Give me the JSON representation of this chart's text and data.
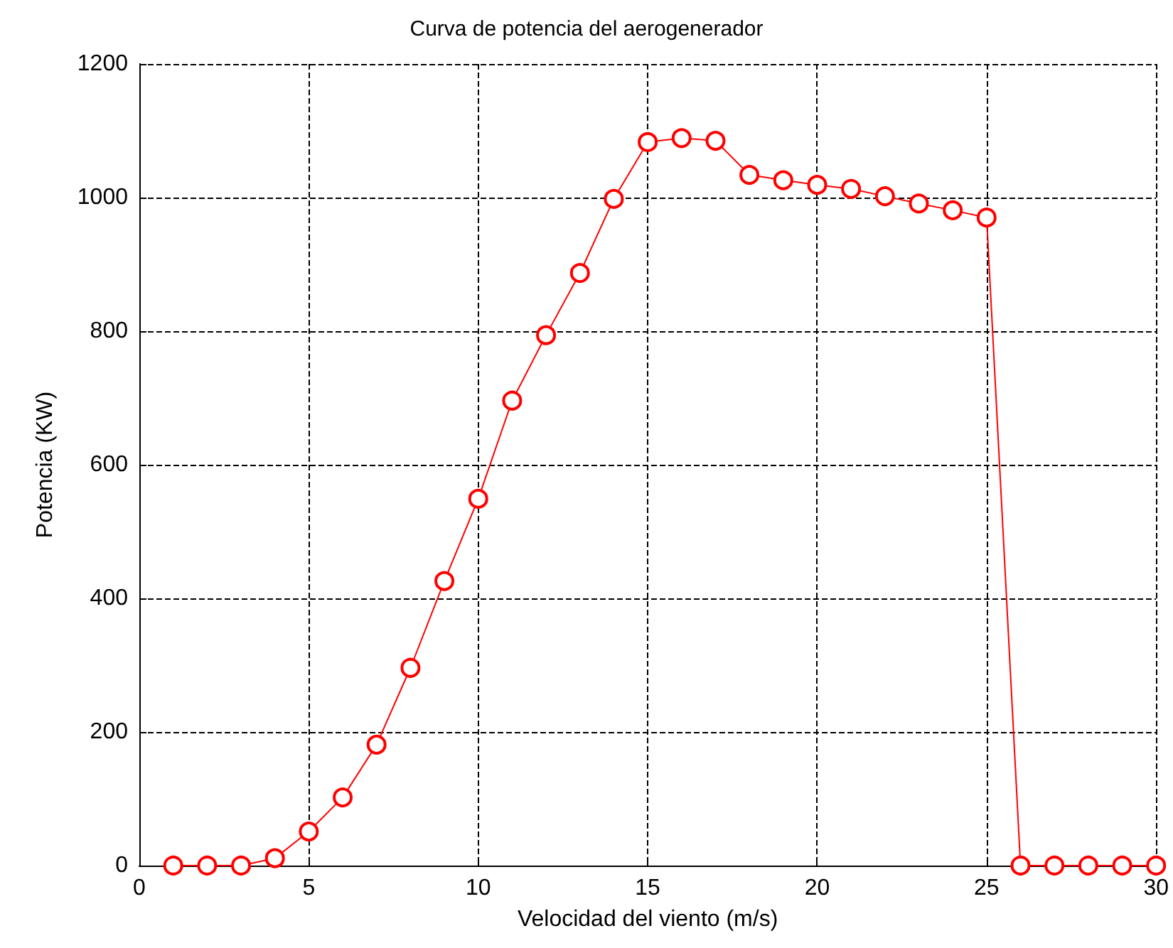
{
  "chart_data": {
    "type": "line",
    "title": "Curva de potencia del aerogenerador",
    "xlabel": "Velocidad del viento (m/s)",
    "ylabel": "Potencia (KW)",
    "x": [
      1,
      2,
      3,
      4,
      5,
      6,
      7,
      8,
      9,
      10,
      11,
      12,
      13,
      14,
      15,
      16,
      17,
      18,
      19,
      20,
      21,
      22,
      23,
      24,
      25,
      26,
      27,
      28,
      29,
      30
    ],
    "series": [
      {
        "color": "#ff0000",
        "values": [
          0,
          0,
          0,
          11,
          51,
          102,
          181,
          296,
          426,
          549,
          696,
          794,
          887,
          998,
          1083,
          1089,
          1085,
          1034,
          1026,
          1019,
          1013,
          1002,
          991,
          981,
          970,
          0,
          0,
          0,
          0,
          0
        ]
      }
    ],
    "xlim": [
      0,
      30
    ],
    "xticks": [
      0,
      5,
      10,
      15,
      20,
      25,
      30
    ],
    "ylim": [
      0,
      1200
    ],
    "yticks": [
      0,
      200,
      400,
      600,
      800,
      1000,
      1200
    ],
    "grid": true,
    "marker": "circle",
    "line_style": "solid"
  }
}
